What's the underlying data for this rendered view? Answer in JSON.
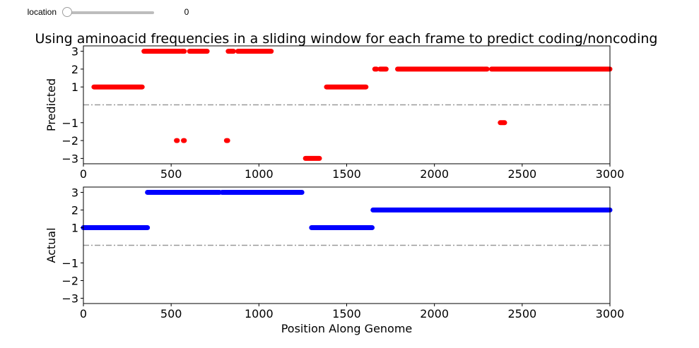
{
  "slider": {
    "label": "location",
    "value": "0",
    "fraction": 0
  },
  "title": "Using aminoacid frequencies in a sliding window for each frame to predict coding/noncoding",
  "chart_data": [
    {
      "type": "scatter",
      "ylabel": "Predicted",
      "xlabel": "",
      "xlim": [
        0,
        3000
      ],
      "ylim": [
        -3.3,
        3.3
      ],
      "xticks": [
        0,
        500,
        1000,
        1500,
        2000,
        2500,
        3000
      ],
      "yticks": [
        3,
        2,
        1,
        -1,
        -2,
        -3
      ],
      "ytick_labels": [
        "3",
        "2",
        "1",
        "−1",
        "−2",
        "−3"
      ],
      "color": "#ff0000",
      "reference_line": {
        "y": 0,
        "style": "dash-dot",
        "color": "#999999"
      },
      "segments": [
        {
          "x0": 60,
          "x1": 335,
          "y": 1
        },
        {
          "x0": 345,
          "x1": 550,
          "y": 3
        },
        {
          "x0": 560,
          "x1": 575,
          "y": 3
        },
        {
          "x0": 605,
          "x1": 705,
          "y": 3
        },
        {
          "x0": 825,
          "x1": 855,
          "y": 3
        },
        {
          "x0": 880,
          "x1": 1070,
          "y": 3
        },
        {
          "x0": 530,
          "x1": 535,
          "y": -2
        },
        {
          "x0": 570,
          "x1": 575,
          "y": -2
        },
        {
          "x0": 815,
          "x1": 822,
          "y": -2
        },
        {
          "x0": 1265,
          "x1": 1345,
          "y": -3
        },
        {
          "x0": 1385,
          "x1": 1610,
          "y": 1
        },
        {
          "x0": 1660,
          "x1": 1670,
          "y": 2
        },
        {
          "x0": 1690,
          "x1": 1725,
          "y": 2
        },
        {
          "x0": 1790,
          "x1": 2280,
          "y": 2
        },
        {
          "x0": 2285,
          "x1": 2300,
          "y": 2
        },
        {
          "x0": 2325,
          "x1": 3000,
          "y": 2
        },
        {
          "x0": 2375,
          "x1": 2400,
          "y": -1
        }
      ]
    },
    {
      "type": "scatter",
      "ylabel": "Actual",
      "xlabel": "Position Along Genome",
      "xlim": [
        0,
        3000
      ],
      "ylim": [
        -3.3,
        3.3
      ],
      "xticks": [
        0,
        500,
        1000,
        1500,
        2000,
        2500,
        3000
      ],
      "yticks": [
        3,
        2,
        1,
        -1,
        -2,
        -3
      ],
      "ytick_labels": [
        "3",
        "2",
        "1",
        "−1",
        "−2",
        "−3"
      ],
      "color": "#0000ff",
      "reference_line": {
        "y": 0,
        "style": "dash-dot",
        "color": "#999999"
      },
      "segments": [
        {
          "x0": 0,
          "x1": 365,
          "y": 1
        },
        {
          "x0": 365,
          "x1": 775,
          "y": 3
        },
        {
          "x0": 790,
          "x1": 1245,
          "y": 3
        },
        {
          "x0": 1300,
          "x1": 1645,
          "y": 1
        },
        {
          "x0": 1650,
          "x1": 3000,
          "y": 2
        }
      ]
    }
  ]
}
